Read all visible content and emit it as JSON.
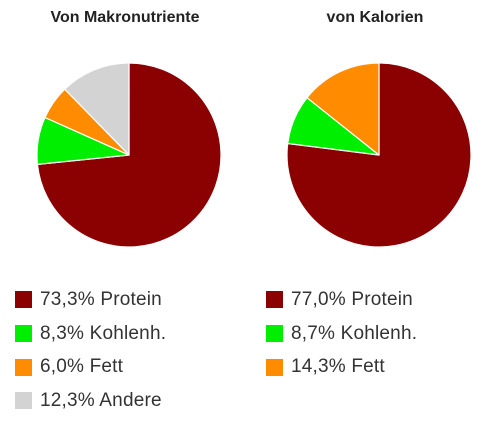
{
  "chart_data": [
    {
      "type": "pie",
      "title": "Von Makronutriente",
      "slices": [
        {
          "label": "73,3% Protein",
          "value": 73.3,
          "color": "#8b0000"
        },
        {
          "label": "8,3% Kohlenh.",
          "value": 8.3,
          "color": "#00ee00"
        },
        {
          "label": "6,0% Fett",
          "value": 6.0,
          "color": "#ff8c00"
        },
        {
          "label": "12,3% Andere",
          "value": 12.3,
          "color": "#d3d3d3"
        }
      ],
      "legend": "bottom"
    },
    {
      "type": "pie",
      "title": "von Kalorien",
      "slices": [
        {
          "label": "77,0% Protein",
          "value": 77.0,
          "color": "#8b0000"
        },
        {
          "label": "8,7% Kohlenh.",
          "value": 8.7,
          "color": "#00ee00"
        },
        {
          "label": "14,3% Fett",
          "value": 14.3,
          "color": "#ff8c00"
        }
      ],
      "legend": "bottom"
    }
  ]
}
